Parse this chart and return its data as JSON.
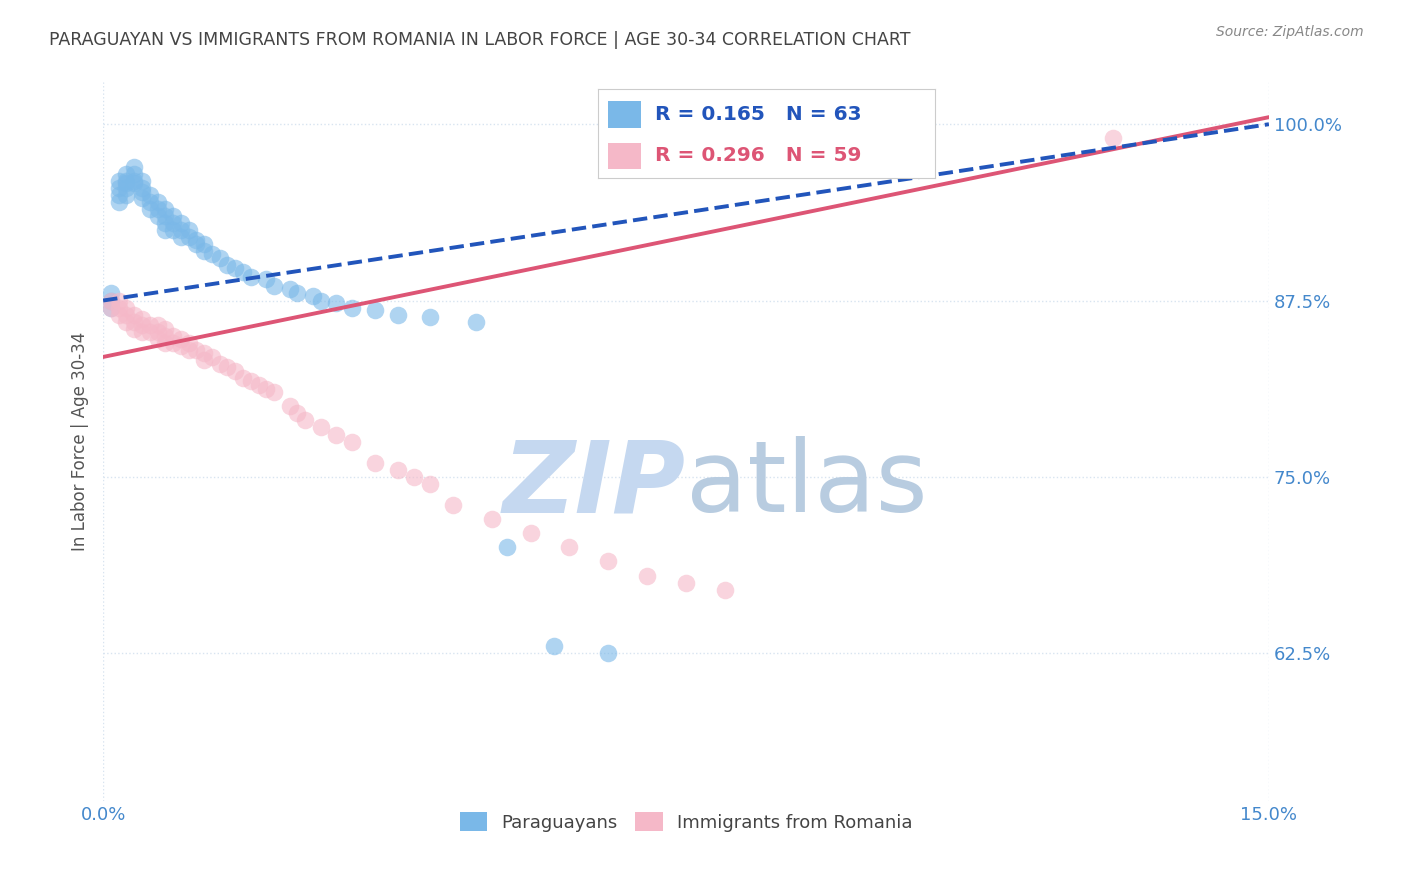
{
  "title": "PARAGUAYAN VS IMMIGRANTS FROM ROMANIA IN LABOR FORCE | AGE 30-34 CORRELATION CHART",
  "source": "Source: ZipAtlas.com",
  "ylabel_label": "In Labor Force | Age 30-34",
  "yticks": [
    100.0,
    87.5,
    75.0,
    62.5
  ],
  "xlim": [
    0.0,
    0.15
  ],
  "ylim": [
    0.52,
    1.03
  ],
  "legend_blue_R": "R = 0.165",
  "legend_blue_N": "N = 63",
  "legend_pink_R": "R = 0.296",
  "legend_pink_N": "N = 59",
  "legend_label_blue": "Paraguayans",
  "legend_label_pink": "Immigrants from Romania",
  "blue_x": [
    0.001,
    0.001,
    0.001,
    0.002,
    0.002,
    0.002,
    0.002,
    0.003,
    0.003,
    0.003,
    0.003,
    0.003,
    0.004,
    0.004,
    0.004,
    0.004,
    0.005,
    0.005,
    0.005,
    0.005,
    0.006,
    0.006,
    0.006,
    0.007,
    0.007,
    0.007,
    0.008,
    0.008,
    0.008,
    0.008,
    0.009,
    0.009,
    0.009,
    0.01,
    0.01,
    0.01,
    0.011,
    0.011,
    0.012,
    0.012,
    0.013,
    0.013,
    0.014,
    0.015,
    0.016,
    0.017,
    0.018,
    0.019,
    0.021,
    0.022,
    0.024,
    0.025,
    0.027,
    0.028,
    0.03,
    0.032,
    0.035,
    0.038,
    0.042,
    0.048,
    0.052,
    0.058,
    0.065
  ],
  "blue_y": [
    0.875,
    0.87,
    0.88,
    0.96,
    0.955,
    0.95,
    0.945,
    0.965,
    0.96,
    0.958,
    0.955,
    0.95,
    0.96,
    0.958,
    0.97,
    0.965,
    0.96,
    0.955,
    0.952,
    0.948,
    0.95,
    0.945,
    0.94,
    0.945,
    0.94,
    0.935,
    0.94,
    0.935,
    0.93,
    0.925,
    0.935,
    0.93,
    0.925,
    0.93,
    0.925,
    0.92,
    0.925,
    0.92,
    0.918,
    0.915,
    0.915,
    0.91,
    0.908,
    0.905,
    0.9,
    0.898,
    0.895,
    0.892,
    0.89,
    0.885,
    0.883,
    0.88,
    0.878,
    0.875,
    0.873,
    0.87,
    0.868,
    0.865,
    0.863,
    0.86,
    0.7,
    0.63,
    0.625
  ],
  "pink_x": [
    0.001,
    0.001,
    0.002,
    0.002,
    0.002,
    0.003,
    0.003,
    0.003,
    0.004,
    0.004,
    0.004,
    0.005,
    0.005,
    0.005,
    0.006,
    0.006,
    0.007,
    0.007,
    0.007,
    0.008,
    0.008,
    0.008,
    0.009,
    0.009,
    0.01,
    0.01,
    0.011,
    0.011,
    0.012,
    0.013,
    0.013,
    0.014,
    0.015,
    0.016,
    0.017,
    0.018,
    0.019,
    0.02,
    0.021,
    0.022,
    0.024,
    0.025,
    0.026,
    0.028,
    0.03,
    0.032,
    0.035,
    0.038,
    0.04,
    0.042,
    0.045,
    0.05,
    0.055,
    0.06,
    0.065,
    0.07,
    0.075,
    0.08,
    0.13
  ],
  "pink_y": [
    0.875,
    0.87,
    0.875,
    0.87,
    0.865,
    0.87,
    0.865,
    0.86,
    0.865,
    0.86,
    0.855,
    0.862,
    0.858,
    0.853,
    0.858,
    0.853,
    0.858,
    0.853,
    0.848,
    0.855,
    0.85,
    0.845,
    0.85,
    0.845,
    0.848,
    0.843,
    0.845,
    0.84,
    0.84,
    0.838,
    0.833,
    0.835,
    0.83,
    0.828,
    0.825,
    0.82,
    0.818,
    0.815,
    0.812,
    0.81,
    0.8,
    0.795,
    0.79,
    0.785,
    0.78,
    0.775,
    0.76,
    0.755,
    0.75,
    0.745,
    0.73,
    0.72,
    0.71,
    0.7,
    0.69,
    0.68,
    0.675,
    0.67,
    0.99
  ],
  "blue_color": "#7ab8e8",
  "pink_color": "#f5b8c8",
  "blue_line_color": "#2255bb",
  "pink_line_color": "#dd5575",
  "title_color": "#444444",
  "source_color": "#888888",
  "tick_color": "#4488cc",
  "grid_color": "#d8e4f0",
  "watermark_zip_color": "#c5d8f0",
  "watermark_atlas_color": "#b8cce0"
}
